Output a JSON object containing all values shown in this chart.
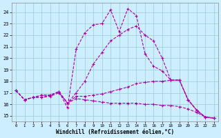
{
  "xlabel": "Windchill (Refroidissement éolien,°C)",
  "bg_color": "#cceeff",
  "line_color": "#aa00aa",
  "grid_color": "#99cccc",
  "x_ticks": [
    0,
    1,
    2,
    3,
    4,
    5,
    6,
    7,
    8,
    9,
    10,
    11,
    12,
    13,
    14,
    15,
    16,
    17,
    18,
    19,
    20,
    21,
    22,
    23
  ],
  "y_ticks": [
    15,
    16,
    17,
    18,
    19,
    20,
    21,
    22,
    23,
    24
  ],
  "ylim": [
    14.5,
    24.8
  ],
  "xlim": [
    -0.5,
    23.5
  ],
  "lines": [
    {
      "x": [
        0,
        1,
        2,
        3,
        4,
        5,
        6,
        7,
        8,
        9,
        10,
        11,
        12,
        13,
        14,
        15,
        16,
        17,
        18,
        19,
        20,
        21,
        22,
        23
      ],
      "y": [
        17.2,
        16.4,
        16.6,
        16.8,
        16.8,
        17.1,
        15.7,
        20.8,
        22.2,
        22.9,
        23.0,
        24.2,
        22.3,
        24.3,
        23.7,
        20.4,
        19.3,
        18.9,
        18.1,
        18.1,
        16.4,
        15.5,
        14.9,
        14.8
      ]
    },
    {
      "x": [
        0,
        1,
        2,
        3,
        4,
        5,
        6,
        7,
        8,
        9,
        10,
        11,
        12,
        13,
        14,
        15,
        16,
        17,
        18,
        19,
        20,
        21,
        22,
        23
      ],
      "y": [
        17.2,
        16.4,
        16.6,
        16.8,
        16.8,
        17.1,
        16.1,
        17.0,
        18.0,
        19.5,
        20.5,
        21.5,
        22.0,
        22.5,
        22.8,
        22.0,
        21.5,
        20.0,
        18.1,
        18.1,
        16.4,
        15.5,
        14.9,
        14.8
      ]
    },
    {
      "x": [
        0,
        1,
        2,
        3,
        4,
        5,
        6,
        7,
        8,
        9,
        10,
        11,
        12,
        13,
        14,
        15,
        16,
        17,
        18,
        19,
        20,
        21,
        22,
        23
      ],
      "y": [
        17.2,
        16.4,
        16.6,
        16.6,
        16.8,
        17.1,
        16.1,
        16.7,
        16.7,
        16.8,
        16.9,
        17.1,
        17.3,
        17.5,
        17.8,
        17.9,
        18.0,
        18.0,
        18.1,
        18.1,
        16.4,
        15.5,
        14.9,
        14.8
      ]
    },
    {
      "x": [
        0,
        1,
        2,
        3,
        4,
        5,
        6,
        7,
        8,
        9,
        10,
        11,
        12,
        13,
        14,
        15,
        16,
        17,
        18,
        19,
        20,
        21,
        22,
        23
      ],
      "y": [
        17.2,
        16.4,
        16.6,
        16.6,
        16.7,
        17.0,
        16.1,
        16.5,
        16.4,
        16.3,
        16.2,
        16.1,
        16.1,
        16.1,
        16.1,
        16.0,
        16.0,
        15.9,
        15.9,
        15.8,
        15.6,
        15.3,
        14.9,
        14.8
      ]
    }
  ]
}
